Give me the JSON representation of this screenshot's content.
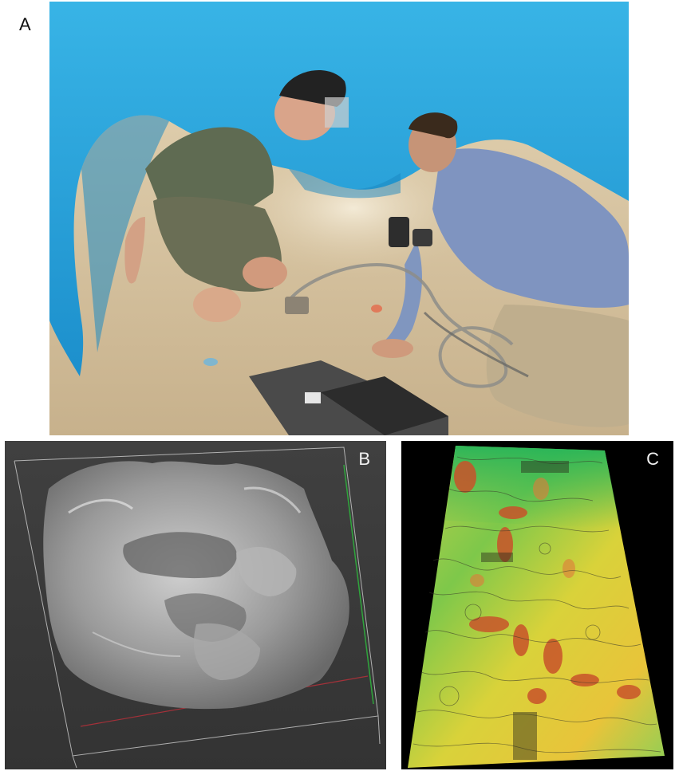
{
  "figure": {
    "panels": [
      {
        "id": "A",
        "label": "A"
      },
      {
        "id": "B",
        "label": "B"
      },
      {
        "id": "C",
        "label": "C"
      }
    ]
  },
  "colors": {
    "tarp": "#2aa9e0",
    "sand": "#d3c2a2",
    "mesh": "#9a9a9a",
    "mesh_bg": "#3a3a3a",
    "contour_low": "#e8e23a",
    "contour_mid": "#7ec84a",
    "contour_high": "#c8532a"
  }
}
